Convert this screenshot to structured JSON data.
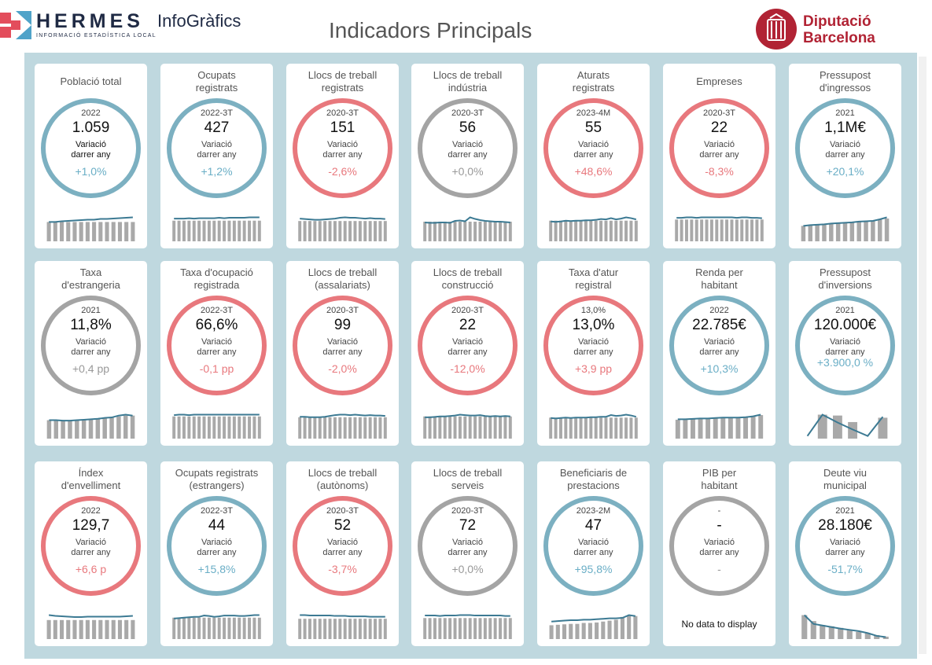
{
  "header": {
    "brand_name": "HERMES",
    "brand_subtitle": "INFORMACIÓ ESTADÍSTICA LOCAL",
    "brand_product": "InfoGràfics",
    "title": "Indicadors Principals",
    "org_line1": "Diputació",
    "org_line2": "Barcelona"
  },
  "colors": {
    "blue": "#7cb0c1",
    "red": "#e8787d",
    "grey": "#a4a4a4",
    "spark_bar": "#a9a9a9",
    "spark_line": "#3c7a93"
  },
  "cards": [
    {
      "title1": "Població total",
      "title2": "",
      "period": "2022",
      "value": "1.059",
      "var1": "Variació",
      "var2": "darrer any",
      "change": "+1,0%",
      "color": "blue",
      "dark_label": true,
      "spark": {
        "bars": [
          5,
          5,
          5,
          5,
          5,
          5,
          5,
          5,
          5,
          5,
          5,
          5,
          5,
          5
        ],
        "line": [
          5,
          5,
          5.2,
          5.3,
          5.4,
          5.5,
          5.6,
          5.6,
          5.8,
          5.8,
          5.9,
          6,
          6.1,
          6.2
        ]
      }
    },
    {
      "title1": "Ocupats",
      "title2": "registrats",
      "period": "2022-3T",
      "value": "427",
      "var1": "Variació",
      "var2": "darrer any",
      "change": "+1,2%",
      "color": "blue",
      "spark": {
        "bars": [
          5,
          5,
          5,
          5,
          5,
          5,
          5,
          5,
          5,
          5,
          5,
          5,
          5,
          5,
          5,
          5,
          5,
          5
        ],
        "line": [
          5.5,
          5.5,
          5.5,
          5.6,
          5.5,
          5.6,
          5.6,
          5.6,
          5.6,
          5.7,
          5.6,
          5.7,
          5.7,
          5.7,
          5.7,
          5.8,
          5.8,
          5.8
        ]
      }
    },
    {
      "title1": "Llocs de treball",
      "title2": "registrats",
      "period": "2020-3T",
      "value": "151",
      "var1": "Variació",
      "var2": "darrer any",
      "change": "-2,6%",
      "color": "red",
      "spark": {
        "bars": [
          5,
          5,
          5,
          5,
          5,
          5,
          5,
          5,
          5,
          5,
          5,
          5,
          5,
          5,
          5,
          5,
          5,
          5
        ],
        "line": [
          5.6,
          5.5,
          5.4,
          5.3,
          5.3,
          5.4,
          5.5,
          5.6,
          5.8,
          5.9,
          5.8,
          5.8,
          5.7,
          5.6,
          5.7,
          5.6,
          5.6,
          5.5
        ]
      }
    },
    {
      "title1": "Llocs de treball",
      "title2": "indústria",
      "period": "2020-3T",
      "value": "56",
      "var1": "Variació",
      "var2": "darrer any",
      "change": "+0,0%",
      "color": "grey",
      "spark": {
        "bars": [
          5,
          5,
          5,
          5,
          5,
          5,
          5,
          5,
          5,
          5,
          5,
          5,
          5,
          5,
          5,
          5,
          5,
          5
        ],
        "line": [
          4.8,
          4.7,
          4.7,
          4.8,
          4.8,
          4.7,
          5.2,
          5.3,
          5.1,
          6.1,
          5.7,
          5.4,
          5.2,
          5.1,
          5,
          5,
          4.9,
          4.8
        ]
      }
    },
    {
      "title1": "Aturats",
      "title2": "registrats",
      "period": "2023-4M",
      "value": "55",
      "var1": "Variació",
      "var2": "darrer any",
      "change": "+48,6%",
      "color": "red",
      "spark": {
        "bars": [
          5,
          5,
          5,
          5,
          5,
          5,
          5,
          5,
          5,
          5,
          5,
          5,
          5,
          5,
          5,
          5,
          5,
          5
        ],
        "line": [
          4.8,
          4.7,
          4.8,
          5,
          4.9,
          5,
          5,
          5.1,
          5.1,
          5.2,
          5.4,
          5.3,
          5.6,
          5.3,
          5.5,
          5.8,
          5.6,
          5.3
        ]
      }
    },
    {
      "title1": "Empreses",
      "title2": "",
      "period": "2020-3T",
      "value": "22",
      "var1": "Variació",
      "var2": "darrer any",
      "change": "-8,3%",
      "color": "red",
      "spark": {
        "bars": [
          5,
          5,
          5,
          5,
          5,
          5,
          5,
          5,
          5,
          5,
          5,
          5,
          5,
          5,
          5,
          5,
          5,
          5
        ],
        "line": [
          5.4,
          5.4,
          5.5,
          5.5,
          5.4,
          5.5,
          5.5,
          5.5,
          5.5,
          5.5,
          5.5,
          5.5,
          5.4,
          5.5,
          5.5,
          5.4,
          5.4,
          5.3
        ]
      }
    },
    {
      "title1": "Pressupost",
      "title2": "d'ingressos",
      "period": "2021",
      "value": "1,1M€",
      "var1": "Variació",
      "var2": "darrer any",
      "change": "+20,1%",
      "color": "blue",
      "spark": {
        "bars": [
          4,
          4.2,
          4.3,
          4.4,
          4.6,
          4.7,
          4.8,
          4.9,
          5.1,
          5.3,
          5.4,
          5.6,
          5.9
        ],
        "line": [
          4,
          4.2,
          4.3,
          4.4,
          4.6,
          4.7,
          4.8,
          4.9,
          5.1,
          5.2,
          5.3,
          5.7,
          6.2
        ]
      }
    },
    {
      "title1": "Taxa",
      "title2": "d'estrangeria",
      "period": "2021",
      "value": "11,8%",
      "var1": "Variació",
      "var2": "darrer any",
      "change": "+0,4 pp",
      "color": "grey",
      "spark": {
        "bars": [
          4,
          4,
          4,
          4,
          4,
          4,
          4.2,
          4.3,
          4.4,
          4.6,
          4.8,
          5,
          5
        ],
        "line": [
          4,
          4,
          3.9,
          3.9,
          4,
          4.1,
          4.2,
          4.3,
          4.5,
          4.6,
          5,
          5.2,
          5
        ]
      }
    },
    {
      "title1": "Taxa d'ocupació",
      "title2": "registrada",
      "period": "2022-3T",
      "value": "66,6%",
      "var1": "Variació",
      "var2": "darrer any",
      "change": "-0,1 pp",
      "color": "red",
      "spark": {
        "bars": [
          5,
          5,
          5,
          5,
          5,
          5,
          5,
          5,
          5,
          5,
          5,
          5,
          5,
          5,
          5,
          5,
          5,
          5
        ],
        "line": [
          5.3,
          5.4,
          5.4,
          5.3,
          5.4,
          5.4,
          5.4,
          5.4,
          5.4,
          5.4,
          5.4,
          5.4,
          5.4,
          5.4,
          5.4,
          5.4,
          5.4,
          5.4
        ]
      }
    },
    {
      "title1": "Llocs de treball",
      "title2": "(assalariats)",
      "period": "2020-3T",
      "value": "99",
      "var1": "Variació",
      "var2": "darrer any",
      "change": "-2,0%",
      "color": "red",
      "spark": {
        "bars": [
          5,
          5,
          5,
          5,
          5,
          5,
          5,
          5,
          5,
          5,
          5,
          5,
          5,
          5,
          5,
          5,
          5,
          5
        ],
        "line": [
          5.1,
          5.1,
          5,
          5,
          5,
          5.1,
          5.3,
          5.5,
          5.6,
          5.6,
          5.5,
          5.6,
          5.5,
          5.4,
          5.5,
          5.4,
          5.4,
          5.3
        ]
      }
    },
    {
      "title1": "Llocs de treball",
      "title2": "construcció",
      "period": "2020-3T",
      "value": "22",
      "var1": "Variació",
      "var2": "darrer any",
      "change": "-12,0%",
      "color": "red",
      "spark": {
        "bars": [
          5,
          5,
          5,
          5,
          5,
          5,
          5,
          5,
          5,
          5,
          5,
          5,
          5,
          5,
          5,
          5,
          5,
          5
        ],
        "line": [
          4.8,
          4.8,
          4.9,
          5,
          5,
          5.1,
          5.2,
          5.4,
          5.3,
          5.2,
          5.2,
          5.3,
          5.1,
          5,
          5.1,
          5,
          5.1,
          5
        ]
      }
    },
    {
      "title1": "Taxa d'atur",
      "title2": "registral",
      "period": "13,0%",
      "value": "13,0%",
      "var1": "Variació",
      "var2": "darrer any",
      "change": "+3,9 pp",
      "color": "red",
      "spark": {
        "bars": [
          5,
          5,
          5,
          5,
          5,
          5,
          5,
          5,
          5,
          5,
          5,
          5,
          5,
          5,
          5,
          5,
          5,
          5
        ],
        "line": [
          4.9,
          4.8,
          4.9,
          5,
          4.9,
          5,
          5,
          5,
          5.1,
          5.1,
          5.2,
          5.2,
          5.6,
          5.4,
          5.5,
          5.7,
          5.5,
          5.2
        ]
      }
    },
    {
      "title1": "Renda per",
      "title2": "habitant",
      "period": "2022",
      "value": "22.785€",
      "var1": "Variació",
      "var2": "darrer any",
      "change": "+10,3%",
      "color": "blue",
      "spark": {
        "bars": [
          4.5,
          4.6,
          4.7,
          4.8,
          4.8,
          4.9,
          5,
          5,
          5.1,
          5.2,
          5.4,
          5.6
        ],
        "line": [
          4.6,
          4.6,
          4.7,
          4.8,
          4.8,
          4.9,
          5,
          5,
          5,
          5.1,
          5.3,
          5.7
        ]
      }
    },
    {
      "title1": "Pressupost",
      "title2": "d'inversions",
      "period": "2021",
      "value": "120.000€",
      "var1": "Variació",
      "var2": "darrer any",
      "change": "+3.900,0 %",
      "color": "blue",
      "wrap": true,
      "spark": {
        "bars": [
          0,
          5.5,
          5.3,
          3.8,
          0,
          4.8
        ],
        "line": [
          0.6,
          5.5,
          3.7,
          2.1,
          0.6,
          5
        ]
      }
    },
    {
      "title1": "Índex",
      "title2": "d'envelliment",
      "period": "2022",
      "value": "129,7",
      "var1": "Variació",
      "var2": "darrer any",
      "change": "+6,6 p",
      "color": "red",
      "spark": {
        "bars": [
          5,
          5,
          5,
          5,
          5,
          5,
          5,
          5,
          5,
          5,
          5,
          5,
          5,
          5
        ],
        "line": [
          6.3,
          6.1,
          6,
          5.9,
          5.8,
          5.8,
          5.9,
          5.9,
          5.9,
          5.9,
          5.9,
          5.9,
          6,
          6.1
        ]
      }
    },
    {
      "title1": "Ocupats registrats",
      "title2": "(estrangers)",
      "period": "2022-3T",
      "value": "44",
      "var1": "Variació",
      "var2": "darrer any",
      "change": "+15,8%",
      "color": "blue",
      "spark": {
        "bars": [
          5,
          5,
          5,
          5,
          5,
          5,
          5,
          5,
          5,
          5,
          5,
          5,
          5,
          5,
          5,
          5,
          5,
          5
        ],
        "line": [
          4.8,
          4.9,
          5,
          5.1,
          5.2,
          5.2,
          5.5,
          5.4,
          5.2,
          5.3,
          5.5,
          5.5,
          5.5,
          5.4,
          5.4,
          5.5,
          5.6,
          5.6
        ]
      }
    },
    {
      "title1": "Llocs de treball",
      "title2": "(autònoms)",
      "period": "2020-3T",
      "value": "52",
      "var1": "Variació",
      "var2": "darrer any",
      "change": "-3,7%",
      "color": "red",
      "spark": {
        "bars": [
          5,
          5,
          5,
          5,
          5,
          5,
          5,
          5,
          5,
          5,
          5,
          5,
          5,
          5,
          5,
          5,
          5,
          5
        ],
        "line": [
          5.9,
          5.9,
          5.8,
          5.8,
          5.8,
          5.8,
          5.8,
          5.7,
          5.7,
          5.7,
          5.6,
          5.6,
          5.6,
          5.6,
          5.5,
          5.5,
          5.5,
          5.5
        ]
      }
    },
    {
      "title1": "Llocs de treball",
      "title2": "serveis",
      "period": "2020-3T",
      "value": "72",
      "var1": "Variació",
      "var2": "darrer any",
      "change": "+0,0%",
      "color": "grey",
      "spark": {
        "bars": [
          5,
          5,
          5,
          5,
          5,
          5,
          5,
          5,
          5,
          5,
          5,
          5,
          5,
          5,
          5,
          5,
          5,
          5
        ],
        "line": [
          5.6,
          5.6,
          5.6,
          5.5,
          5.6,
          5.6,
          5.6,
          5.7,
          5.7,
          5.7,
          5.6,
          5.6,
          5.6,
          5.6,
          5.6,
          5.6,
          5.5,
          5.5
        ]
      }
    },
    {
      "title1": "Beneficiaris de",
      "title2": "prestacions",
      "period": "2023-2M",
      "value": "47",
      "var1": "Variació",
      "var2": "darrer any",
      "change": "+95,8%",
      "color": "blue",
      "spark": {
        "bars": [
          3,
          3.1,
          3.2,
          3.3,
          3.3,
          3.5,
          3.5,
          3.6,
          3.8,
          4,
          4.2,
          4.8,
          5.1,
          5
        ],
        "line": [
          3.8,
          3.9,
          4,
          4.1,
          4.1,
          4.2,
          4.2,
          4.3,
          4.4,
          4.5,
          4.5,
          4.6,
          5.2,
          5
        ]
      }
    },
    {
      "title1": "PIB per",
      "title2": "habitant",
      "period": "-",
      "value": "-",
      "var1": "Variació",
      "var2": "darrer any",
      "change": "-",
      "color": "grey",
      "nodata": "No data to display"
    },
    {
      "title1": "Deute viu",
      "title2": "municipal",
      "period": "2021",
      "value": "28.180€",
      "var1": "Variació",
      "var2": "darrer any",
      "change": "-51,7%",
      "color": "blue",
      "spark": {
        "bars": [
          6,
          4.5,
          3.5,
          3.2,
          2.8,
          2.3,
          1.8,
          1.5,
          1,
          0.6
        ],
        "line": [
          6,
          3.8,
          3.4,
          3,
          2.6,
          2.3,
          2,
          1.5,
          0.8,
          0.5
        ]
      }
    }
  ]
}
